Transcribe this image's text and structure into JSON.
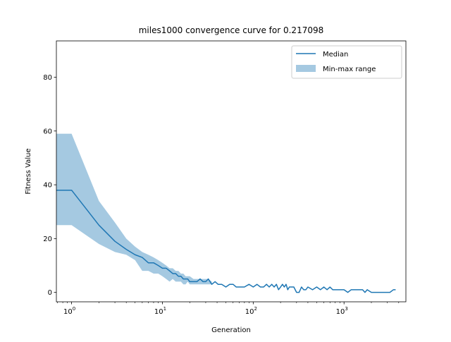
{
  "chart_data": {
    "type": "line",
    "title": "miles1000 convergence curve for 0.217098",
    "xlabel": "Generation",
    "ylabel": "Fitness Value",
    "xscale": "log",
    "xlim": [
      0.68,
      4800
    ],
    "ylim": [
      -3.5,
      93.5
    ],
    "x_ticks": [
      {
        "value": 1,
        "base": "10",
        "exp": "0"
      },
      {
        "value": 10,
        "base": "10",
        "exp": "1"
      },
      {
        "value": 100,
        "base": "10",
        "exp": "2"
      },
      {
        "value": 1000,
        "base": "10",
        "exp": "3"
      }
    ],
    "y_ticks": [
      0,
      20,
      40,
      60,
      80
    ],
    "grid": false,
    "legend_position": "upper right",
    "colors": {
      "median": "#1f77b4",
      "range_fill": "#1f77b4",
      "range_alpha": 0.4
    },
    "series": [
      {
        "name": "Median",
        "kind": "line",
        "x": [
          0.68,
          1,
          2,
          3,
          4,
          5,
          6,
          7,
          8,
          9,
          10,
          11,
          12,
          13,
          14,
          15,
          16,
          17,
          18,
          19,
          20,
          22,
          24,
          26,
          28,
          30,
          32,
          35,
          38,
          41,
          45,
          50,
          55,
          60,
          65,
          70,
          75,
          80,
          90,
          100,
          110,
          120,
          130,
          140,
          150,
          160,
          170,
          180,
          190,
          200,
          210,
          220,
          230,
          240,
          250,
          280,
          300,
          320,
          340,
          360,
          380,
          400,
          450,
          500,
          550,
          600,
          650,
          700,
          750,
          800,
          900,
          1000,
          1100,
          1200,
          1400,
          1600,
          1700,
          1800,
          2000,
          2500,
          3000,
          3200,
          3500,
          3700
        ],
        "y": [
          38,
          38,
          25,
          19,
          16,
          14,
          13,
          11,
          11,
          10,
          9,
          9,
          8,
          7,
          7,
          6,
          6,
          5,
          5,
          5,
          4,
          4,
          4,
          5,
          4,
          4,
          5,
          3,
          4,
          3,
          3,
          2,
          3,
          3,
          2,
          2,
          2,
          2,
          3,
          2,
          3,
          2,
          2,
          3,
          2,
          3,
          2,
          3,
          1,
          2,
          3,
          2,
          3,
          1,
          2,
          2,
          0,
          0,
          2,
          1,
          1,
          2,
          1,
          2,
          1,
          2,
          1,
          2,
          1,
          1,
          1,
          1,
          0,
          1,
          1,
          1,
          0,
          1,
          0,
          0,
          0,
          0,
          1,
          1
        ]
      },
      {
        "name": "Min-max range",
        "kind": "band",
        "x": [
          0.68,
          1,
          2,
          3,
          4,
          5,
          6,
          7,
          8,
          9,
          10,
          11,
          12,
          13,
          14,
          15,
          16,
          17,
          18,
          19,
          20,
          22,
          24,
          26,
          28,
          30,
          32,
          35
        ],
        "lower": [
          25,
          25,
          18,
          15,
          14,
          12,
          8,
          8,
          7,
          7,
          6,
          5,
          4,
          5,
          4,
          4,
          4,
          3,
          3,
          4,
          3,
          3,
          3,
          3,
          3,
          3,
          3,
          3
        ],
        "upper": [
          59,
          59,
          34,
          26,
          20,
          17,
          15,
          14,
          13,
          12,
          11,
          10,
          9,
          9,
          8,
          8,
          7,
          7,
          6,
          6,
          6,
          5,
          5,
          5,
          5,
          5,
          5,
          4
        ]
      }
    ]
  }
}
